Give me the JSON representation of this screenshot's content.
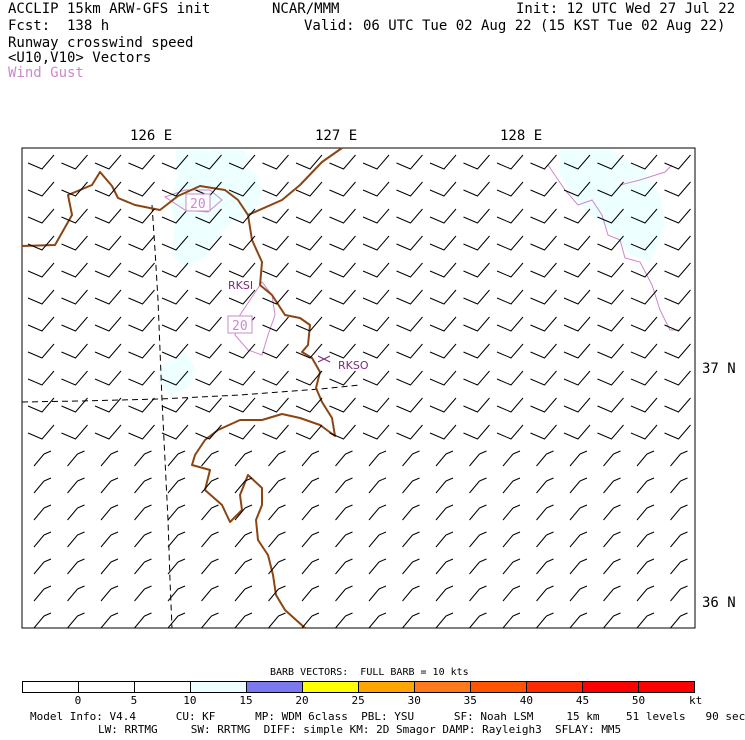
{
  "header": {
    "model": "ACCLIP 15km ARW-GFS init",
    "center": "NCAR/MMM",
    "init": "Init: 12 UTC Wed 27 Jul 22",
    "fcst": "Fcst:  138 h",
    "valid": "Valid: 06 UTC Tue 02 Aug 22 (15 KST Tue 02 Aug 22)",
    "field1": "Runway crosswind speed",
    "field2": "<U10,V10> Vectors",
    "field3": "Wind Gust"
  },
  "map": {
    "lon_labels": [
      "126 E",
      "127 E",
      "128 E"
    ],
    "lat_labels": [
      "37 N",
      "36 N"
    ],
    "stations": [
      "RKSI",
      "RKSO"
    ],
    "gust_labels": [
      "20",
      "20"
    ],
    "colors": {
      "land": "#8B4513",
      "gust": "#cc88cc",
      "shade": "#eeffff",
      "barb": "#000000"
    }
  },
  "legend": {
    "title": "BARB VECTORS:  FULL BARB = 10 kts",
    "ticks": [
      "0",
      "5",
      "10",
      "15",
      "20",
      "25",
      "30",
      "35",
      "40",
      "45",
      "50"
    ],
    "unit": "kt",
    "colors": [
      "#ffffff",
      "#ffffff",
      "#ffffff",
      "#eeffff",
      "#7a7aee",
      "#ffff00",
      "#ffa500",
      "#ff7a1a",
      "#ff5500",
      "#ff2a00",
      "#ff0000",
      "#ff0000"
    ]
  },
  "footer": {
    "line1": "Model Info: V4.4      CU: KF      MP: WDM 6class  PBL: YSU      SF: Noah LSM     15 km    51 levels   90 sec",
    "line2": "LW: RRTMG     SW: RRTMG  DIFF: simple KM: 2D Smagor DAMP: Rayleigh3  SFLAY: MM5"
  }
}
